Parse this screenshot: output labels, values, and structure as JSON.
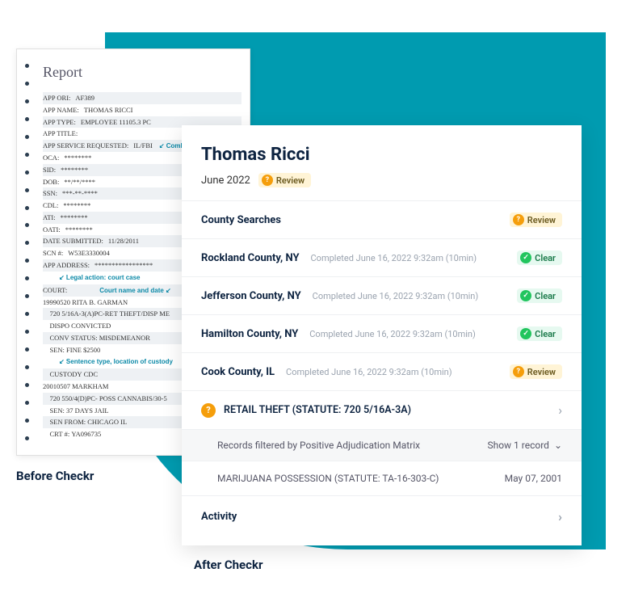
{
  "colors": {
    "teal": "#009bb0",
    "navy": "#0d2340",
    "annot": "#0d8aa8",
    "review_bg": "#fff4d6",
    "review_icon": "#f59e0b",
    "clear_bg": "#e6f9f0",
    "clear_icon": "#22c55e"
  },
  "before": {
    "title": "Report",
    "fields": [
      {
        "k": "APP ORI:",
        "v": "AF389"
      },
      {
        "k": "APP NAME:",
        "v": "THOMAS RICCI"
      },
      {
        "k": "APP TYPE:",
        "v": "EMPLOYEE 11105.3 PC"
      },
      {
        "k": "APP TITLE:",
        "v": ""
      },
      {
        "k": "APP SERVICE REQUESTED:",
        "v": "IL/FBI",
        "annot_inline": "Combined FBI/IL DOJ record"
      },
      {
        "k": "OCA:",
        "v": "********"
      },
      {
        "k": "SID:",
        "v": "********"
      },
      {
        "k": "DOB:",
        "v": "**/**/****"
      },
      {
        "k": "SSN:",
        "v": "***-**-****"
      },
      {
        "k": "CDL:",
        "v": "********"
      },
      {
        "k": "ATI:",
        "v": "********"
      },
      {
        "k": "OATI:",
        "v": "********"
      },
      {
        "k": "DATE SUBMITTED:",
        "v": "11/28/2011"
      },
      {
        "k": "SCN #:",
        "v": "W53E3330004"
      },
      {
        "k": "APP ADDRESS:",
        "v": "*****************"
      }
    ],
    "annot1": "Legal action: court case",
    "court_line": "COURT:",
    "court_annot_inline": "Court name and date",
    "case1": [
      "19990520 RITA B. GARMAN",
      "    720 5/16A-3(A)PC-RET THEFT/DISP ME",
      "    DISPO CONVICTED",
      "    CONV STATUS: MISDEMEANOR",
      "    SEN: FINE $2500"
    ],
    "annot2": "Sentence type, location of custody",
    "case2": [
      "    CUSTODY CDC",
      "20010507 MARKHAM",
      "    720 550/4(D)PC- POSS CANNABIS/30-5",
      "    SEN: 37 DAYS JAIL",
      "    SEN FROM: CHICAGO IL",
      "    CRT #: YA096735"
    ],
    "label": "Before Checkr"
  },
  "after": {
    "name": "Thomas Ricci",
    "date": "June 2022",
    "header_badge": "Review",
    "section_title": "County Searches",
    "section_badge": "Review",
    "counties": [
      {
        "name": "Rockland County, NY",
        "meta": "Completed June 16, 2022 9:32am (10min)",
        "status": "Clear"
      },
      {
        "name": "Jefferson County, NY",
        "meta": "Completed June 16, 2022 9:32am (10min)",
        "status": "Clear"
      },
      {
        "name": "Hamilton County, NY",
        "meta": "Completed June 16, 2022 9:32am (10min)",
        "status": "Clear"
      },
      {
        "name": "Cook County, IL",
        "meta": "Completed June 16, 2022 9:32am (10min)",
        "status": "Review"
      }
    ],
    "charge": "RETAIL THEFT (STATUTE: 720 5/16A-3A)",
    "filter_text": "Records filtered by Positive Adjudication Matrix",
    "show_record": "Show 1 record",
    "sub_charge": "MARIJUANA POSSESSION (STATUTE: TA-16-303-C)",
    "sub_charge_date": "May 07, 2001",
    "activity": "Activity",
    "label": "After Checkr"
  }
}
